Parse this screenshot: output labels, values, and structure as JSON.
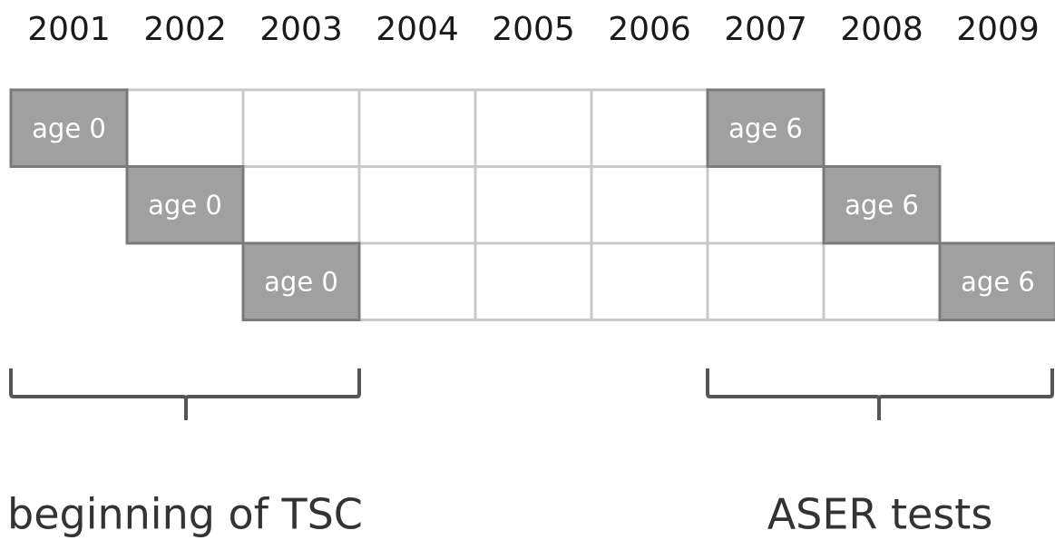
{
  "years": [
    "2001",
    "2002",
    "2003",
    "2004",
    "2005",
    "2006",
    "2007",
    "2008",
    "2009"
  ],
  "rows": [
    {
      "first": "age 0",
      "last": "age 6"
    },
    {
      "first": "age 0",
      "last": "age 6"
    },
    {
      "first": "age 0",
      "last": "age 6"
    }
  ],
  "brackets": [
    {
      "label": "beginning of TSC"
    },
    {
      "label": "ASER tests"
    }
  ]
}
